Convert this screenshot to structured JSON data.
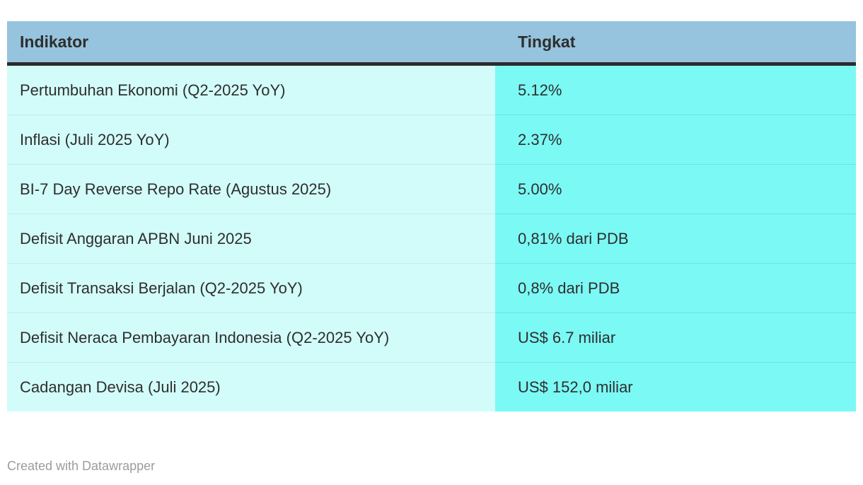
{
  "chart_data": {
    "type": "table",
    "columns": [
      "Indikator",
      "Tingkat"
    ],
    "rows": [
      [
        "Pertumbuhan Ekonomi (Q2-2025 YoY)",
        "5.12%"
      ],
      [
        "Inflasi (Juli 2025 YoY)",
        "2.37%"
      ],
      [
        "BI-7 Day Reverse Repo Rate (Agustus 2025)",
        "5.00%"
      ],
      [
        "Defisit Anggaran APBN Juni 2025",
        "0,81% dari PDB"
      ],
      [
        "Defisit Transaksi Berjalan (Q2-2025 YoY)",
        "0,8% dari PDB"
      ],
      [
        "Defisit Neraca Pembayaran Indonesia (Q2-2025 YoY)",
        "US$ 6.7 miliar"
      ],
      [
        "Cadangan Devisa (Juli 2025)",
        "US$ 152,0 miliar"
      ]
    ],
    "title": "",
    "legend_position": "none",
    "grid": "row-dividers"
  },
  "colors": {
    "header_background": "#96c4de",
    "header_underline": "#2b2b2b",
    "indikator_column_background": "#d2fcf9",
    "tingkat_column_background": "#7bf9f5",
    "text": "#2e2e2e",
    "footer_text": "#9c9c9c"
  },
  "footer": {
    "attribution": "Created with Datawrapper"
  }
}
